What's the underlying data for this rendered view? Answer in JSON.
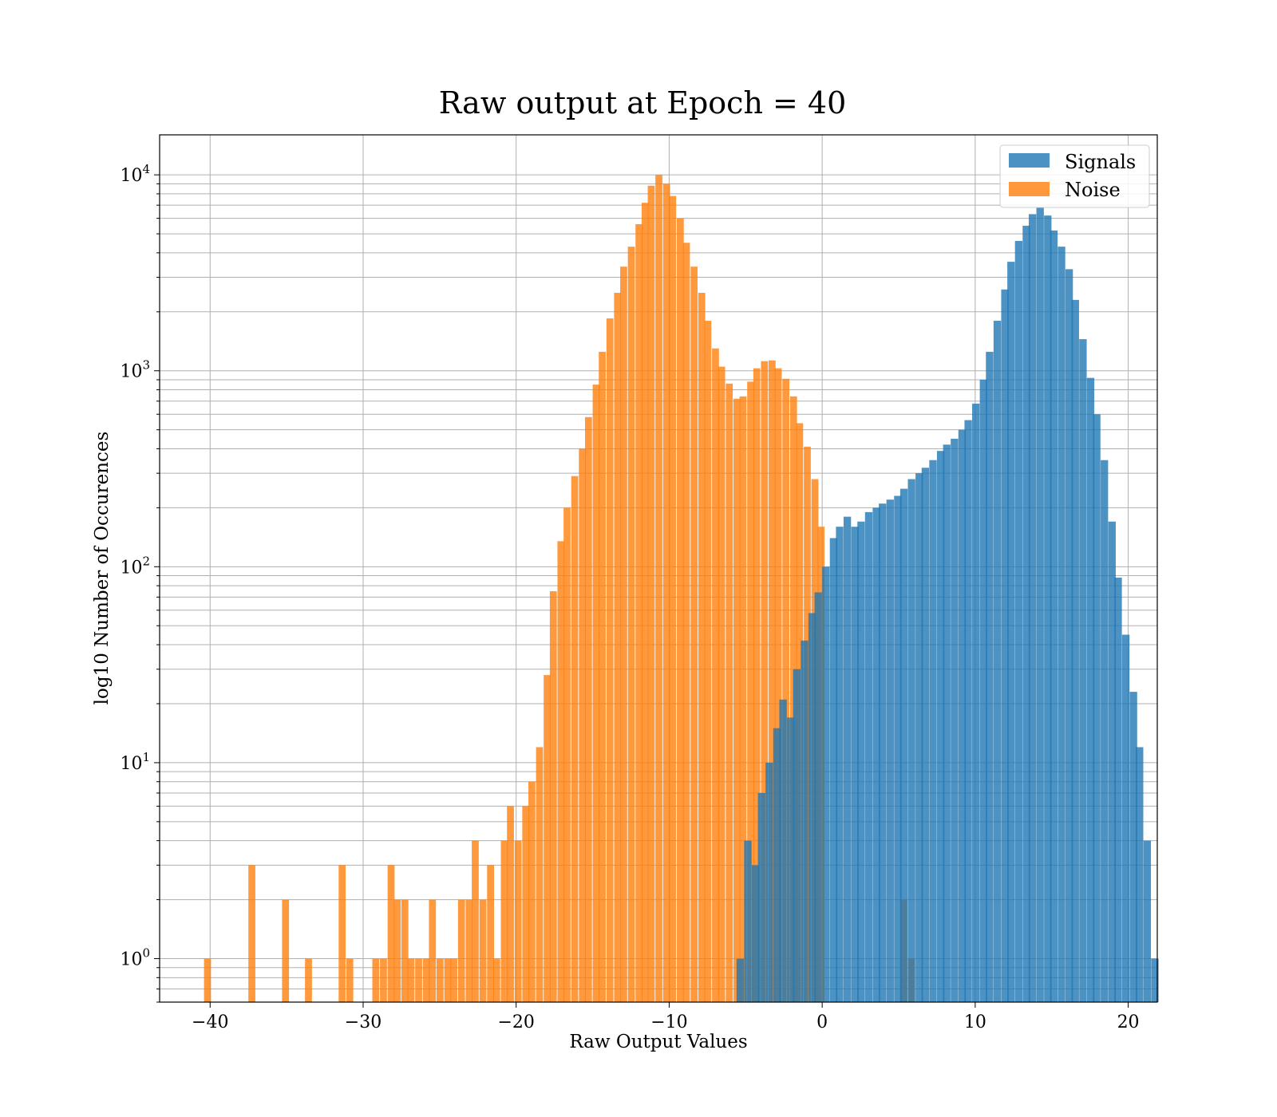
{
  "chart_data": {
    "type": "histogram",
    "title": "Raw output at Epoch = 40",
    "xlabel": "Raw Output Values",
    "ylabel": "log10 Number of Occurences",
    "xlim": [
      -43.3,
      21.9
    ],
    "ylim": [
      0.6,
      16000
    ],
    "yscale": "log",
    "grid": true,
    "legend_position": "top-right",
    "x_ticks": [
      -40,
      -30,
      -20,
      -10,
      0,
      10,
      20
    ],
    "x_tick_labels": [
      "−40",
      "−30",
      "−20",
      "−10",
      "0",
      "10",
      "20"
    ],
    "y_ticks": [
      {
        "value": 1,
        "base": "10",
        "exp": "0"
      },
      {
        "value": 10,
        "base": "10",
        "exp": "1"
      },
      {
        "value": 100,
        "base": "10",
        "exp": "2"
      },
      {
        "value": 1000,
        "base": "10",
        "exp": "3"
      },
      {
        "value": 10000,
        "base": "10",
        "exp": "4"
      }
    ],
    "series": [
      {
        "name": "Noise",
        "color": "#ff7f0e",
        "bin_width": 0.44,
        "bins": [
          [
            -40.4,
            1
          ],
          [
            -37.5,
            3
          ],
          [
            -35.3,
            2
          ],
          [
            -33.8,
            1
          ],
          [
            -31.6,
            3
          ],
          [
            -31.1,
            1
          ],
          [
            -29.4,
            1
          ],
          [
            -28.9,
            1
          ],
          [
            -28.4,
            3
          ],
          [
            -28.0,
            2
          ],
          [
            -27.5,
            2
          ],
          [
            -27.1,
            1
          ],
          [
            -26.6,
            1
          ],
          [
            -26.1,
            1
          ],
          [
            -25.7,
            2
          ],
          [
            -25.2,
            1
          ],
          [
            -24.7,
            1
          ],
          [
            -24.3,
            1
          ],
          [
            -23.8,
            2
          ],
          [
            -23.3,
            2
          ],
          [
            -22.9,
            4
          ],
          [
            -22.4,
            2
          ],
          [
            -21.9,
            3
          ],
          [
            -21.5,
            1
          ],
          [
            -21.0,
            4
          ],
          [
            -20.6,
            6
          ],
          [
            -20.1,
            4
          ],
          [
            -19.6,
            6
          ],
          [
            -19.2,
            8
          ],
          [
            -18.7,
            12
          ],
          [
            -18.2,
            28
          ],
          [
            -17.8,
            75
          ],
          [
            -17.3,
            135
          ],
          [
            -16.9,
            200
          ],
          [
            -16.4,
            290
          ],
          [
            -15.9,
            400
          ],
          [
            -15.5,
            580
          ],
          [
            -15.0,
            850
          ],
          [
            -14.6,
            1250
          ],
          [
            -14.1,
            1850
          ],
          [
            -13.6,
            2500
          ],
          [
            -13.2,
            3400
          ],
          [
            -12.7,
            4300
          ],
          [
            -12.2,
            5600
          ],
          [
            -11.8,
            7200
          ],
          [
            -11.4,
            8800
          ],
          [
            -10.9,
            10000
          ],
          [
            -10.4,
            9000
          ],
          [
            -10.0,
            7800
          ],
          [
            -9.5,
            6000
          ],
          [
            -9.1,
            4500
          ],
          [
            -8.6,
            3400
          ],
          [
            -8.1,
            2500
          ],
          [
            -7.7,
            1800
          ],
          [
            -7.2,
            1300
          ],
          [
            -6.8,
            1050
          ],
          [
            -6.3,
            860
          ],
          [
            -5.8,
            720
          ],
          [
            -5.4,
            740
          ],
          [
            -4.9,
            880
          ],
          [
            -4.5,
            1030
          ],
          [
            -4.0,
            1120
          ],
          [
            -3.5,
            1130
          ],
          [
            -3.1,
            1030
          ],
          [
            -2.6,
            910
          ],
          [
            -2.1,
            740
          ],
          [
            -1.7,
            540
          ],
          [
            -1.2,
            410
          ],
          [
            -0.7,
            280
          ],
          [
            -0.3,
            160
          ],
          [
            5.1,
            2
          ],
          [
            5.6,
            1
          ]
        ],
        "ext_bins_note": ""
      },
      {
        "name": "Signals",
        "color": "#1f77b4",
        "bin_width": 0.47,
        "bins": [
          [
            -5.6,
            1
          ],
          [
            -5.1,
            4
          ],
          [
            -4.6,
            3
          ],
          [
            -4.2,
            7
          ],
          [
            -3.7,
            10
          ],
          [
            -3.2,
            15
          ],
          [
            -2.8,
            21
          ],
          [
            -2.3,
            17
          ],
          [
            -1.9,
            30
          ],
          [
            -1.4,
            42
          ],
          [
            -0.9,
            58
          ],
          [
            -0.5,
            74
          ],
          [
            0.0,
            100
          ],
          [
            0.5,
            140
          ],
          [
            0.9,
            160
          ],
          [
            1.4,
            180
          ],
          [
            1.9,
            160
          ],
          [
            2.3,
            170
          ],
          [
            2.8,
            190
          ],
          [
            3.3,
            200
          ],
          [
            3.7,
            210
          ],
          [
            4.2,
            220
          ],
          [
            4.7,
            230
          ],
          [
            5.1,
            250
          ],
          [
            5.6,
            280
          ],
          [
            6.1,
            300
          ],
          [
            6.5,
            320
          ],
          [
            7.0,
            350
          ],
          [
            7.5,
            390
          ],
          [
            7.9,
            420
          ],
          [
            8.4,
            450
          ],
          [
            8.9,
            500
          ],
          [
            9.3,
            560
          ],
          [
            9.8,
            680
          ],
          [
            10.3,
            900
          ],
          [
            10.7,
            1250
          ],
          [
            11.2,
            1800
          ],
          [
            11.7,
            2600
          ],
          [
            12.1,
            3600
          ],
          [
            12.6,
            4600
          ],
          [
            13.1,
            5500
          ],
          [
            13.5,
            6300
          ],
          [
            14.0,
            6800
          ],
          [
            14.5,
            6200
          ],
          [
            14.9,
            5200
          ],
          [
            15.4,
            4300
          ],
          [
            15.9,
            3300
          ],
          [
            16.3,
            2300
          ],
          [
            16.8,
            1450
          ],
          [
            17.3,
            920
          ],
          [
            17.7,
            600
          ],
          [
            18.2,
            350
          ],
          [
            18.7,
            170
          ],
          [
            19.1,
            88
          ],
          [
            19.6,
            45
          ],
          [
            20.1,
            23
          ],
          [
            20.5,
            12
          ],
          [
            21.0,
            4
          ],
          [
            21.5,
            1
          ]
        ]
      }
    ]
  }
}
